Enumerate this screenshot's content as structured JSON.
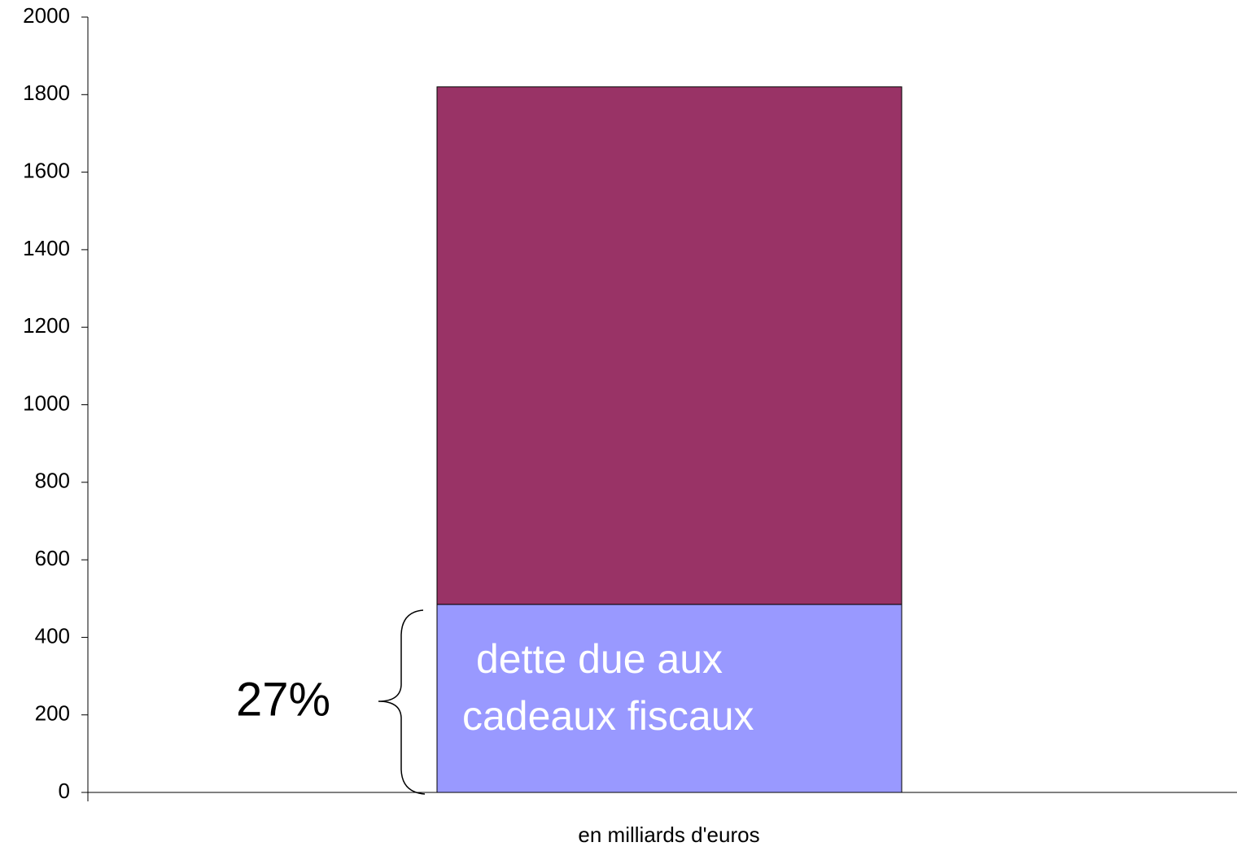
{
  "chart_data": {
    "type": "stacked_bar",
    "categories": [
      "en milliards d'euros"
    ],
    "series": [
      {
        "color": "#9999ff",
        "values": [
          485
        ]
      },
      {
        "color": "#993366",
        "values": [
          1335
        ]
      }
    ],
    "ylim": [
      0,
      2000
    ],
    "yticks": [
      0,
      200,
      400,
      600,
      800,
      1000,
      1200,
      1400,
      1600,
      1800,
      2000
    ],
    "grid": false,
    "annotations": {
      "percent": "27%",
      "label_lines": [
        "dette due aux",
        "cadeaux fiscaux"
      ]
    }
  }
}
